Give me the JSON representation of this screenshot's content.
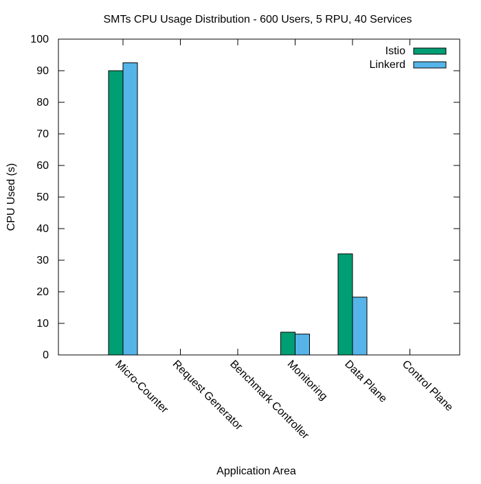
{
  "chart_data": {
    "type": "bar",
    "title": "SMTs CPU Usage Distribution - 600 Users, 5 RPU, 40 Services",
    "xlabel": "Application Area",
    "ylabel": "CPU Used (s)",
    "ylim": [
      0,
      100
    ],
    "yticks": [
      0,
      10,
      20,
      30,
      40,
      50,
      60,
      70,
      80,
      90,
      100
    ],
    "categories": [
      "Micro-Counter",
      "Request Generator",
      "Benchmark Controller",
      "Monitoring",
      "Data Plane",
      "Control Plane"
    ],
    "series": [
      {
        "name": "Istio",
        "color": "#009e73",
        "values": [
          90,
          0,
          0,
          7.2,
          32,
          0
        ]
      },
      {
        "name": "Linkerd",
        "color": "#56b4e9",
        "values": [
          92.5,
          0,
          0,
          6.6,
          18.3,
          0
        ]
      }
    ],
    "legend_position": "top-right",
    "grid": false
  }
}
